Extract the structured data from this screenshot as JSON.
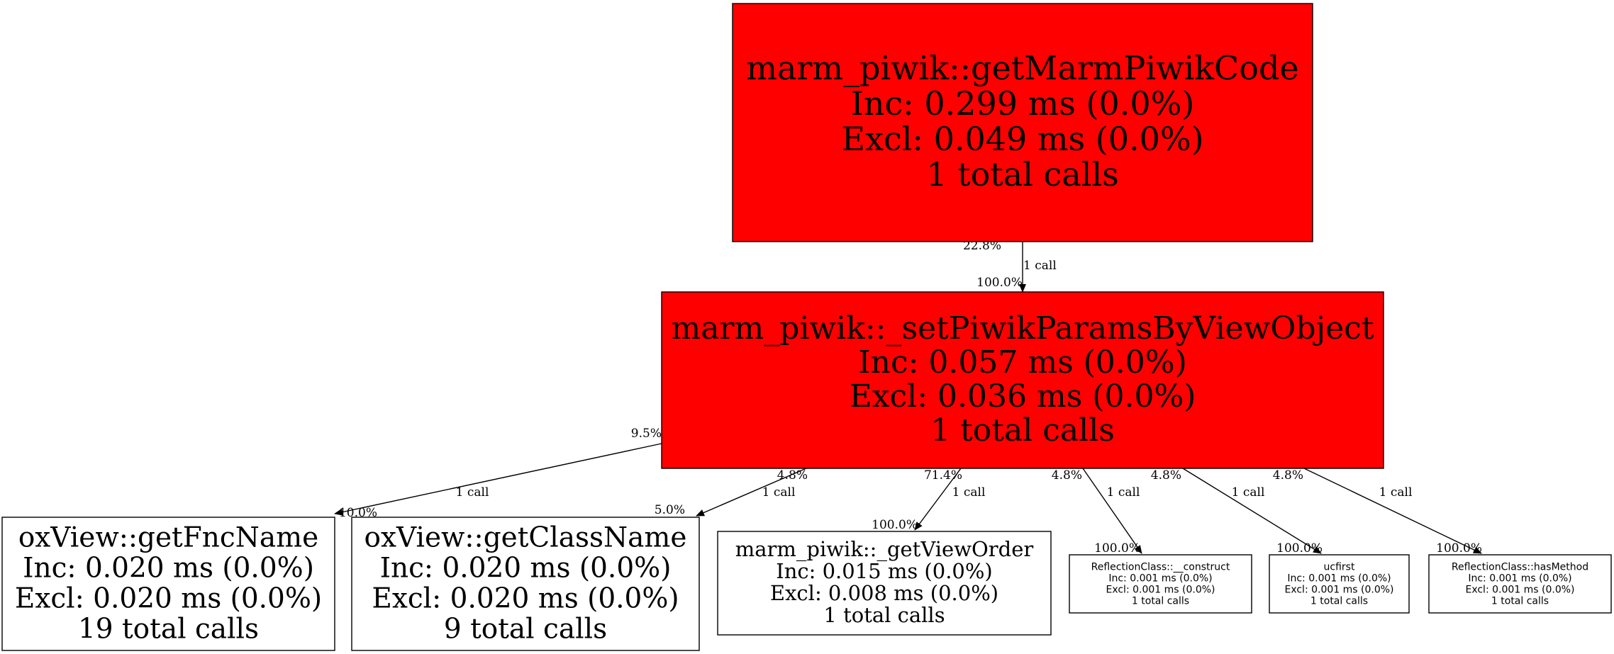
{
  "colors": {
    "hot": "#ff0000",
    "normal": "#ffffff",
    "stroke": "#000000"
  },
  "nodes": {
    "getMarmPiwikCode": {
      "lines": [
        "marm_piwik::getMarmPiwikCode",
        "Inc: 0.299 ms (0.0%)",
        "Excl: 0.049 ms (0.0%)",
        "1 total calls"
      ],
      "fill": "hot"
    },
    "setPiwikParams": {
      "lines": [
        "marm_piwik::_setPiwikParamsByViewObject",
        "Inc: 0.057 ms (0.0%)",
        "Excl: 0.036 ms (0.0%)",
        "1 total calls"
      ],
      "fill": "hot"
    },
    "getFncName": {
      "lines": [
        "oxView::getFncName",
        "Inc: 0.020 ms (0.0%)",
        "Excl: 0.020 ms (0.0%)",
        "19 total calls"
      ],
      "fill": "normal"
    },
    "getClassName": {
      "lines": [
        "oxView::getClassName",
        "Inc: 0.020 ms (0.0%)",
        "Excl: 0.020 ms (0.0%)",
        "9 total calls"
      ],
      "fill": "normal"
    },
    "getViewOrder": {
      "lines": [
        "marm_piwik::_getViewOrder",
        "Inc: 0.015 ms (0.0%)",
        "Excl: 0.008 ms (0.0%)",
        "1 total calls"
      ],
      "fill": "normal"
    },
    "construct": {
      "lines": [
        "ReflectionClass::__construct",
        "Inc: 0.001 ms (0.0%)",
        "Excl: 0.001 ms (0.0%)",
        "1 total calls"
      ],
      "fill": "normal"
    },
    "ucfirst": {
      "lines": [
        "ucfirst",
        "Inc: 0.001 ms (0.0%)",
        "Excl: 0.001 ms (0.0%)",
        "1 total calls"
      ],
      "fill": "normal"
    },
    "hasMethod": {
      "lines": [
        "ReflectionClass::hasMethod",
        "Inc: 0.001 ms (0.0%)",
        "Excl: 0.001 ms (0.0%)",
        "1 total calls"
      ],
      "fill": "normal"
    }
  },
  "edges": [
    {
      "from": "getMarmPiwikCode",
      "to": "setPiwikParams",
      "tail": "22.8%",
      "label": "1 call",
      "head": "100.0%"
    },
    {
      "from": "setPiwikParams",
      "to": "getFncName",
      "tail": "9.5%",
      "label": "1 call",
      "head": "10.0%"
    },
    {
      "from": "setPiwikParams",
      "to": "getClassName",
      "tail": "4.8%",
      "label": "1 call",
      "head": "5.0%"
    },
    {
      "from": "setPiwikParams",
      "to": "getViewOrder",
      "tail": "71.4%",
      "label": "1 call",
      "head": "100.0%"
    },
    {
      "from": "setPiwikParams",
      "to": "construct",
      "tail": "4.8%",
      "label": "1 call",
      "head": "100.0%"
    },
    {
      "from": "setPiwikParams",
      "to": "ucfirst",
      "tail": "4.8%",
      "label": "1 call",
      "head": "100.0%"
    },
    {
      "from": "setPiwikParams",
      "to": "hasMethod",
      "tail": "4.8%",
      "label": "1 call",
      "head": "100.0%"
    }
  ]
}
